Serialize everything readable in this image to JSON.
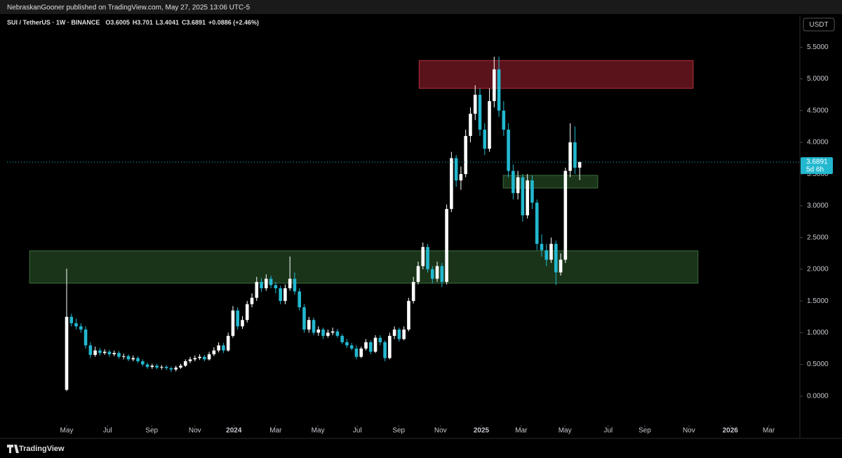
{
  "header": {
    "publisher_line": "NebraskanGooner published on TradingView.com, May 27, 2025 13:06 UTC-5",
    "logo": "TradingView"
  },
  "chart_data": {
    "type": "candlestick",
    "symbol": "SUI / TetherUS · 1W · BINANCE",
    "ohlc_labels": [
      "O",
      "H",
      "L",
      "C"
    ],
    "change": "+0.0886 (+2.46%)",
    "currency": "USDT",
    "countdown": "5d 6h",
    "up_color": "#ffffff",
    "down_color": "#22b8cf",
    "x": [
      0,
      1,
      2,
      3,
      4,
      5,
      6,
      7,
      8,
      9,
      10,
      11,
      12,
      13,
      14,
      15,
      16,
      17,
      18,
      19,
      20,
      21,
      22,
      23,
      24,
      25,
      26,
      27,
      28,
      29,
      30,
      31,
      32,
      33,
      34,
      35,
      36,
      37,
      38,
      39,
      40,
      41,
      42,
      43,
      44,
      45,
      46,
      47,
      48,
      49,
      50,
      51,
      52,
      53,
      54,
      55,
      56,
      57,
      58,
      59,
      60,
      61,
      62,
      63,
      64,
      65,
      66,
      67,
      68,
      69,
      70,
      71,
      72,
      73,
      74,
      75,
      76,
      77,
      78,
      79,
      80,
      81,
      82,
      83,
      84,
      85,
      86,
      87,
      88,
      89,
      90,
      91,
      92,
      93,
      94,
      95,
      96,
      97,
      98,
      99,
      100,
      101,
      102,
      103,
      104,
      105,
      106,
      107,
      108
    ],
    "open": [
      0.1,
      1.25,
      1.15,
      1.1,
      1.05,
      0.8,
      0.65,
      0.72,
      0.68,
      0.7,
      0.66,
      0.68,
      0.62,
      0.63,
      0.58,
      0.6,
      0.55,
      0.5,
      0.46,
      0.48,
      0.45,
      0.46,
      0.44,
      0.42,
      0.45,
      0.48,
      0.55,
      0.58,
      0.6,
      0.62,
      0.58,
      0.66,
      0.72,
      0.8,
      0.72,
      0.95,
      1.35,
      1.1,
      1.2,
      1.45,
      1.55,
      1.8,
      1.7,
      1.85,
      1.75,
      1.7,
      1.5,
      1.7,
      1.85,
      1.65,
      1.4,
      1.05,
      1.2,
      1.0,
      1.05,
      0.95,
      1.0,
      1.02,
      0.95,
      0.85,
      0.8,
      0.75,
      0.62,
      0.75,
      0.85,
      0.7,
      0.92,
      0.85,
      0.6,
      0.95,
      1.05,
      0.9,
      1.05,
      1.5,
      1.8,
      2.05,
      2.35,
      2.0,
      1.85,
      2.05,
      1.8,
      2.95,
      3.75,
      3.4,
      3.5,
      4.1,
      4.45,
      4.75,
      4.2,
      3.9,
      4.65,
      5.15,
      4.5,
      4.2,
      3.55,
      3.2,
      3.45,
      2.85,
      3.4,
      3.05,
      2.4,
      2.3,
      2.15,
      2.4,
      1.95,
      2.15,
      3.55,
      4.0,
      3.6005
    ],
    "high": [
      2.01,
      1.3,
      1.22,
      1.15,
      1.1,
      0.85,
      0.78,
      0.76,
      0.74,
      0.73,
      0.72,
      0.71,
      0.67,
      0.66,
      0.64,
      0.63,
      0.58,
      0.53,
      0.51,
      0.51,
      0.49,
      0.49,
      0.47,
      0.48,
      0.51,
      0.58,
      0.62,
      0.64,
      0.66,
      0.65,
      0.7,
      0.77,
      0.85,
      0.84,
      1.0,
      1.42,
      1.4,
      1.26,
      1.5,
      1.62,
      1.88,
      1.86,
      1.92,
      1.9,
      1.8,
      1.74,
      1.76,
      2.2,
      1.95,
      1.7,
      1.45,
      1.25,
      1.24,
      1.1,
      1.08,
      1.05,
      1.08,
      1.06,
      0.98,
      0.9,
      0.84,
      0.8,
      0.78,
      0.9,
      0.88,
      0.96,
      0.96,
      0.88,
      1.0,
      1.1,
      1.08,
      1.1,
      1.55,
      1.88,
      2.12,
      2.42,
      2.4,
      2.05,
      2.12,
      2.1,
      3.02,
      3.85,
      3.8,
      3.62,
      4.2,
      4.55,
      4.9,
      4.85,
      4.3,
      4.85,
      5.35,
      5.35,
      4.65,
      4.3,
      3.65,
      3.55,
      3.5,
      3.5,
      3.48,
      3.1,
      2.55,
      2.4,
      2.5,
      2.45,
      2.25,
      3.6,
      4.3,
      4.25,
      3.701
    ],
    "low": [
      0.08,
      1.1,
      1.05,
      1.0,
      0.75,
      0.6,
      0.62,
      0.64,
      0.65,
      0.62,
      0.63,
      0.59,
      0.58,
      0.55,
      0.55,
      0.52,
      0.47,
      0.43,
      0.43,
      0.42,
      0.42,
      0.41,
      0.38,
      0.39,
      0.43,
      0.46,
      0.52,
      0.55,
      0.57,
      0.55,
      0.56,
      0.63,
      0.69,
      0.68,
      0.7,
      0.92,
      1.05,
      1.06,
      1.16,
      1.4,
      1.5,
      1.64,
      1.66,
      1.7,
      1.62,
      1.45,
      1.45,
      1.66,
      1.6,
      1.35,
      1.0,
      1.0,
      0.96,
      0.95,
      0.9,
      0.92,
      0.96,
      0.92,
      0.82,
      0.76,
      0.72,
      0.58,
      0.6,
      0.72,
      0.66,
      0.68,
      0.8,
      0.55,
      0.58,
      0.9,
      0.86,
      0.88,
      1.02,
      1.46,
      1.76,
      2.0,
      1.95,
      1.78,
      1.8,
      1.72,
      1.76,
      2.9,
      3.3,
      3.25,
      3.45,
      4.0,
      4.35,
      4.1,
      3.8,
      3.85,
      4.55,
      4.4,
      4.1,
      3.45,
      3.1,
      3.1,
      2.75,
      2.8,
      2.95,
      2.3,
      2.2,
      2.05,
      2.1,
      1.75,
      1.9,
      2.1,
      3.45,
      3.5,
      3.4041
    ],
    "close": [
      1.25,
      1.15,
      1.1,
      1.05,
      0.8,
      0.65,
      0.72,
      0.68,
      0.7,
      0.66,
      0.68,
      0.62,
      0.63,
      0.58,
      0.6,
      0.55,
      0.5,
      0.46,
      0.48,
      0.45,
      0.46,
      0.44,
      0.42,
      0.45,
      0.48,
      0.55,
      0.58,
      0.6,
      0.62,
      0.58,
      0.66,
      0.72,
      0.8,
      0.72,
      0.95,
      1.35,
      1.1,
      1.2,
      1.45,
      1.55,
      1.8,
      1.7,
      1.85,
      1.75,
      1.7,
      1.5,
      1.7,
      1.85,
      1.65,
      1.4,
      1.05,
      1.2,
      1.0,
      1.05,
      0.95,
      1.0,
      1.02,
      0.95,
      0.85,
      0.8,
      0.75,
      0.62,
      0.75,
      0.85,
      0.7,
      0.92,
      0.85,
      0.6,
      0.95,
      1.05,
      0.9,
      1.05,
      1.5,
      1.8,
      2.05,
      2.35,
      2.0,
      1.85,
      2.05,
      1.8,
      2.95,
      3.75,
      3.4,
      3.5,
      4.1,
      4.45,
      4.75,
      4.2,
      3.9,
      4.65,
      5.15,
      4.5,
      4.2,
      3.55,
      3.2,
      3.45,
      2.85,
      3.4,
      3.05,
      2.4,
      2.3,
      2.15,
      2.4,
      1.95,
      2.15,
      3.55,
      4.0,
      3.6,
      3.6891
    ],
    "zones": [
      {
        "color": "#6b1620",
        "border": "#b0303c",
        "x": [
          74.2,
          131.9
        ],
        "y": [
          4.85,
          5.29
        ]
      },
      {
        "color": "#1f3d1f",
        "border": "#3d6e3d",
        "x": [
          -7.8,
          132.9
        ],
        "y": [
          1.78,
          2.29
        ]
      },
      {
        "color": "#1f3d1f",
        "border": "#3d6e3d",
        "x": [
          91.9,
          111.8
        ],
        "y": [
          3.28,
          3.48
        ]
      }
    ],
    "xlim": [
      -12.556,
      154.36
    ],
    "xticks": [
      {
        "value": 0,
        "label": "May"
      },
      {
        "value": 8.6,
        "label": "Jul"
      },
      {
        "value": 17.9,
        "label": "Sep"
      },
      {
        "value": 27.0,
        "label": "Nov"
      },
      {
        "value": 35.2,
        "label": "2024"
      },
      {
        "value": 44.0,
        "label": "Mar"
      },
      {
        "value": 52.9,
        "label": "May"
      },
      {
        "value": 61.2,
        "label": "Jul"
      },
      {
        "value": 69.9,
        "label": "Sep"
      },
      {
        "value": 78.7,
        "label": "Nov"
      },
      {
        "value": 87.3,
        "label": "2025"
      },
      {
        "value": 95.7,
        "label": "Mar"
      },
      {
        "value": 104.9,
        "label": "May"
      },
      {
        "value": 114.0,
        "label": "Jul"
      },
      {
        "value": 121.7,
        "label": "Sep"
      },
      {
        "value": 131.0,
        "label": "Nov"
      },
      {
        "value": 139.7,
        "label": "2026"
      },
      {
        "value": 147.8,
        "label": "Mar"
      }
    ],
    "ylim": [
      -0.4,
      6.0
    ],
    "yticks": [
      {
        "value": 0,
        "label": "0.0000"
      },
      {
        "value": 0.5,
        "label": "0.5000"
      },
      {
        "value": 1,
        "label": "1.0000"
      },
      {
        "value": 1.5,
        "label": "1.5000"
      },
      {
        "value": 2,
        "label": "2.0000"
      },
      {
        "value": 2.5,
        "label": "2.5000"
      },
      {
        "value": 3,
        "label": "3.0000"
      },
      {
        "value": 3.5,
        "label": "3.5000"
      },
      {
        "value": 4,
        "label": "4.0000"
      },
      {
        "value": 4.5,
        "label": "4.5000"
      },
      {
        "value": 5,
        "label": "5.0000"
      },
      {
        "value": 5.5,
        "label": "5.5000"
      }
    ]
  }
}
